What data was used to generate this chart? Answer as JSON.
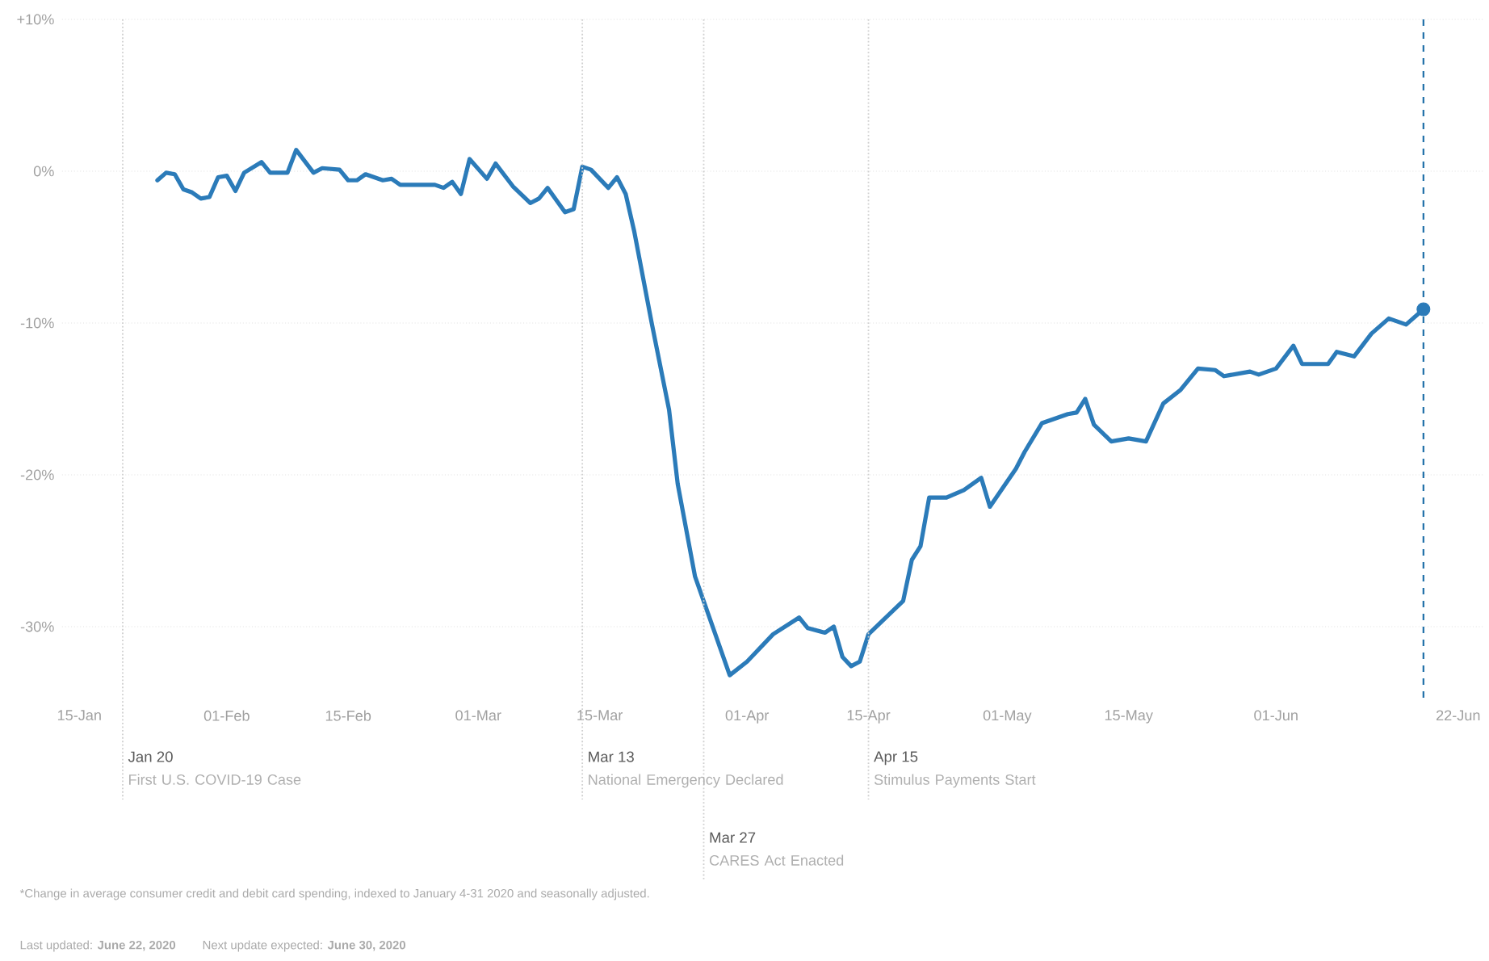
{
  "chart_data": {
    "type": "line",
    "x": [
      "2020-01-24",
      "2020-01-25",
      "2020-01-26",
      "2020-01-27",
      "2020-01-28",
      "2020-01-29",
      "2020-01-30",
      "2020-01-31",
      "2020-02-01",
      "2020-02-02",
      "2020-02-03",
      "2020-02-05",
      "2020-02-06",
      "2020-02-08",
      "2020-02-09",
      "2020-02-11",
      "2020-02-12",
      "2020-02-14",
      "2020-02-15",
      "2020-02-16",
      "2020-02-17",
      "2020-02-19",
      "2020-02-20",
      "2020-02-21",
      "2020-02-25",
      "2020-02-26",
      "2020-02-27",
      "2020-02-28",
      "2020-02-29",
      "2020-03-02",
      "2020-03-03",
      "2020-03-05",
      "2020-03-07",
      "2020-03-08",
      "2020-03-09",
      "2020-03-11",
      "2020-03-12",
      "2020-03-13",
      "2020-03-14",
      "2020-03-16",
      "2020-03-17",
      "2020-03-18",
      "2020-03-19",
      "2020-03-21",
      "2020-03-23",
      "2020-03-24",
      "2020-03-26",
      "2020-03-30",
      "2020-04-01",
      "2020-04-04",
      "2020-04-07",
      "2020-04-08",
      "2020-04-10",
      "2020-04-11",
      "2020-04-12",
      "2020-04-13",
      "2020-04-14",
      "2020-04-15",
      "2020-04-19",
      "2020-04-20",
      "2020-04-21",
      "2020-04-22",
      "2020-04-24",
      "2020-04-26",
      "2020-04-28",
      "2020-04-29",
      "2020-05-02",
      "2020-05-03",
      "2020-05-05",
      "2020-05-08",
      "2020-05-09",
      "2020-05-10",
      "2020-05-11",
      "2020-05-13",
      "2020-05-15",
      "2020-05-17",
      "2020-05-19",
      "2020-05-21",
      "2020-05-23",
      "2020-05-25",
      "2020-05-26",
      "2020-05-29",
      "2020-05-30",
      "2020-06-01",
      "2020-06-03",
      "2020-06-04",
      "2020-06-07",
      "2020-06-08",
      "2020-06-10",
      "2020-06-12",
      "2020-06-14",
      "2020-06-16",
      "2020-06-18"
    ],
    "series": [
      {
        "color": "#2b7bb9",
        "marker": "none",
        "values": [
          -0.6,
          -0.1,
          -0.2,
          -1.2,
          -1.4,
          -1.8,
          -1.7,
          -0.4,
          -0.3,
          -1.3,
          -0.1,
          0.6,
          -0.1,
          -0.1,
          1.4,
          -0.1,
          0.2,
          0.1,
          -0.6,
          -0.6,
          -0.2,
          -0.6,
          -0.5,
          -0.9,
          -0.9,
          -1.1,
          -0.7,
          -1.5,
          0.8,
          -0.5,
          0.5,
          -1.0,
          -2.1,
          -1.8,
          -1.1,
          -2.7,
          -2.5,
          0.3,
          0.1,
          -1.1,
          -0.4,
          -1.5,
          -4,
          -10,
          -15.7,
          -20.6,
          -26.7,
          -33.2,
          -32.3,
          -30.5,
          -29.4,
          -30.1,
          -30.4,
          -30,
          -32,
          -32.6,
          -32.3,
          -30.5,
          -28.3,
          -25.6,
          -24.7,
          -21.5,
          -21.5,
          -21,
          -20.2,
          -22.1,
          -19.6,
          -18.5,
          -16.6,
          -16,
          -15.9,
          -15,
          -16.7,
          -17.8,
          -17.6,
          -17.8,
          -15.3,
          -14.4,
          -13,
          -13.1,
          -13.5,
          -13.2,
          -13.4,
          -13,
          -11.5,
          -12.7,
          -12.7,
          -11.9,
          -12.2,
          -10.7,
          -9.7,
          -10.1,
          -9.1
        ]
      },
      {
        "type": "scatter",
        "marker": "circle",
        "color": "#2b7bb9",
        "x": [
          "2020-06-18"
        ],
        "values": [
          -9.1
        ]
      }
    ],
    "xlim": [
      "2020-01-13",
      "2020-06-25"
    ],
    "ylim": [
      -35,
      10
    ],
    "xticks": [
      {
        "value": "2020-01-15",
        "label": "15-Jan"
      },
      {
        "value": "2020-02-01",
        "label": "01-Feb"
      },
      {
        "value": "2020-02-15",
        "label": "15-Feb"
      },
      {
        "value": "2020-03-01",
        "label": "01-Mar"
      },
      {
        "value": "2020-03-15",
        "label": "15-Mar"
      },
      {
        "value": "2020-04-01",
        "label": "01-Apr"
      },
      {
        "value": "2020-04-15",
        "label": "15-Apr"
      },
      {
        "value": "2020-05-01",
        "label": "01-May"
      },
      {
        "value": "2020-05-15",
        "label": "15-May"
      },
      {
        "value": "2020-06-01",
        "label": "01-Jun"
      },
      {
        "value": "2020-06-22",
        "label": "22-Jun"
      }
    ],
    "yticks": [
      {
        "value": 10,
        "label": "+10%"
      },
      {
        "value": 0,
        "label": "0%"
      },
      {
        "value": -10,
        "label": "-10%"
      },
      {
        "value": -20,
        "label": "-20%"
      },
      {
        "value": -30,
        "label": "-30%"
      }
    ],
    "grid": "y",
    "ref_lines": [
      {
        "axis": "x",
        "value": "2020-01-20",
        "label": "Jan 20",
        "color": "#cfcfcf",
        "line_style": "dotted"
      },
      {
        "axis": "x",
        "value": "2020-03-13",
        "label": "Mar 13",
        "color": "#cfcfcf",
        "line_style": "dotted"
      },
      {
        "axis": "x",
        "value": "2020-03-27",
        "label": "Mar 27",
        "color": "#cfcfcf",
        "line_style": "dotted"
      },
      {
        "axis": "x",
        "value": "2020-04-15",
        "label": "Apr 15",
        "color": "#cfcfcf",
        "line_style": "dotted"
      },
      {
        "axis": "x",
        "value": "2020-06-18",
        "color": "#1f6fa8",
        "line_style": "dashed"
      }
    ],
    "annotations": [
      "First U.S. COVID-19 Case",
      "National Emergency Declared",
      "CARES Act Enacted",
      "Stimulus Payments Start",
      "*Change in average consumer credit and debit card spending, indexed to January 4-31 2020 and seasonally adjusted.",
      "Last updated: **June 22, 2020**",
      "Next update expected: **June 30, 2020**"
    ]
  }
}
